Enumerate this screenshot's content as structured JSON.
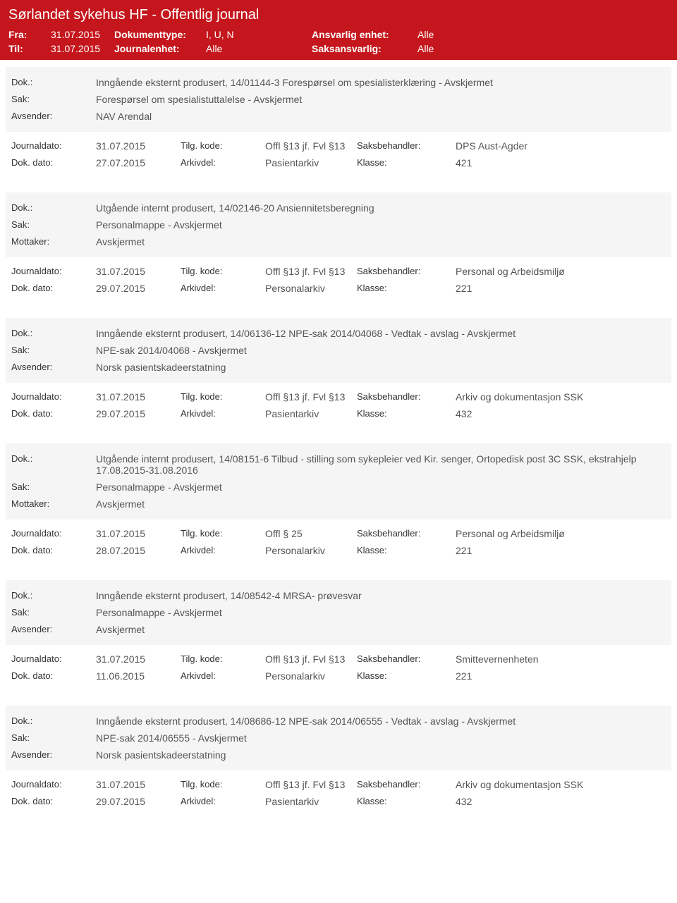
{
  "header": {
    "title": "Sørlandet sykehus HF - Offentlig journal",
    "fra_label": "Fra:",
    "fra_value": "31.07.2015",
    "til_label": "Til:",
    "til_value": "31.07.2015",
    "doktype_label": "Dokumenttype:",
    "doktype_value": "I, U, N",
    "journalenhet_label": "Journalenhet:",
    "journalenhet_value": "Alle",
    "ansvarlig_label": "Ansvarlig enhet:",
    "ansvarlig_value": "Alle",
    "saksansvarlig_label": "Saksansvarlig:",
    "saksansvarlig_value": "Alle"
  },
  "labels": {
    "dok": "Dok.:",
    "sak": "Sak:",
    "avsender": "Avsender:",
    "mottaker": "Mottaker:",
    "journaldato": "Journaldato:",
    "dokdato": "Dok. dato:",
    "tilgkode": "Tilg. kode:",
    "arkivdel": "Arkivdel:",
    "saksbehandler": "Saksbehandler:",
    "klasse": "Klasse:"
  },
  "entries": [
    {
      "dok": "Inngående eksternt produsert, 14/01144-3 Forespørsel om spesialisterklæring - Avskjermet",
      "sak": "Forespørsel om spesialistuttalelse - Avskjermet",
      "party_label": "avsender",
      "party_value": "NAV Arendal",
      "journaldato": "31.07.2015",
      "tilgkode": "Offl §13 jf. Fvl §13",
      "saksbehandler": "DPS Aust-Agder",
      "dokdato": "27.07.2015",
      "arkivdel": "Pasientarkiv",
      "klasse": "421"
    },
    {
      "dok": "Utgående internt produsert, 14/02146-20 Ansiennitetsberegning",
      "sak": "Personalmappe - Avskjermet",
      "party_label": "mottaker",
      "party_value": "Avskjermet",
      "journaldato": "31.07.2015",
      "tilgkode": "Offl §13 jf. Fvl §13",
      "saksbehandler": "Personal og Arbeidsmiljø",
      "dokdato": "29.07.2015",
      "arkivdel": "Personalarkiv",
      "klasse": "221"
    },
    {
      "dok": "Inngående eksternt produsert, 14/06136-12 NPE-sak 2014/04068 - Vedtak - avslag - Avskjermet",
      "sak": "NPE-sak 2014/04068 - Avskjermet",
      "party_label": "avsender",
      "party_value": "Norsk pasientskadeerstatning",
      "journaldato": "31.07.2015",
      "tilgkode": "Offl §13 jf. Fvl §13",
      "saksbehandler": "Arkiv og dokumentasjon SSK",
      "dokdato": "29.07.2015",
      "arkivdel": "Pasientarkiv",
      "klasse": "432"
    },
    {
      "dok": "Utgående internt produsert, 14/08151-6 Tilbud - stilling som sykepleier ved Kir. senger, Ortopedisk post 3C SSK, ekstrahjelp 17.08.2015-31.08.2016",
      "sak": "Personalmappe - Avskjermet",
      "party_label": "mottaker",
      "party_value": "Avskjermet",
      "journaldato": "31.07.2015",
      "tilgkode": "Offl § 25",
      "saksbehandler": "Personal og Arbeidsmiljø",
      "dokdato": "28.07.2015",
      "arkivdel": "Personalarkiv",
      "klasse": "221"
    },
    {
      "dok": "Inngående eksternt produsert, 14/08542-4 MRSA- prøvesvar",
      "sak": "Personalmappe - Avskjermet",
      "party_label": "avsender",
      "party_value": "Avskjermet",
      "journaldato": "31.07.2015",
      "tilgkode": "Offl §13 jf. Fvl §13",
      "saksbehandler": "Smittevernenheten",
      "dokdato": "11.06.2015",
      "arkivdel": "Personalarkiv",
      "klasse": "221"
    },
    {
      "dok": "Inngående eksternt produsert, 14/08686-12 NPE-sak 2014/06555 - Vedtak - avslag - Avskjermet",
      "sak": "NPE-sak 2014/06555 - Avskjermet",
      "party_label": "avsender",
      "party_value": "Norsk pasientskadeerstatning",
      "journaldato": "31.07.2015",
      "tilgkode": "Offl §13 jf. Fvl §13",
      "saksbehandler": "Arkiv og dokumentasjon SSK",
      "dokdato": "29.07.2015",
      "arkivdel": "Pasientarkiv",
      "klasse": "432"
    }
  ]
}
